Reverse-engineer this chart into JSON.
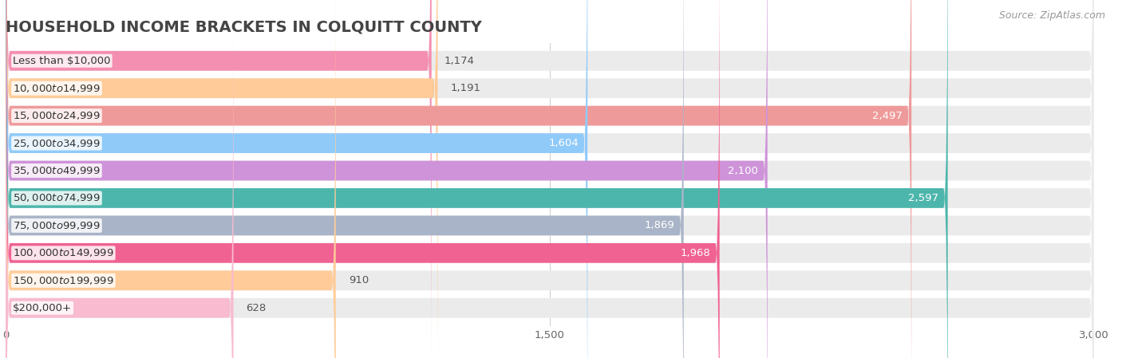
{
  "title": "HOUSEHOLD INCOME BRACKETS IN COLQUITT COUNTY",
  "source": "Source: ZipAtlas.com",
  "categories": [
    "Less than $10,000",
    "$10,000 to $14,999",
    "$15,000 to $24,999",
    "$25,000 to $34,999",
    "$35,000 to $49,999",
    "$50,000 to $74,999",
    "$75,000 to $99,999",
    "$100,000 to $149,999",
    "$150,000 to $199,999",
    "$200,000+"
  ],
  "values": [
    1174,
    1191,
    2497,
    1604,
    2100,
    2597,
    1869,
    1968,
    910,
    628
  ],
  "bar_colors": [
    "#f48fb1",
    "#ffcc99",
    "#ef9a9a",
    "#90caf9",
    "#ce93d8",
    "#4db6ac",
    "#aab4c8",
    "#f06292",
    "#ffcc99",
    "#f8bbd0"
  ],
  "bar_bg_color": "#ebebeb",
  "xlim": [
    0,
    3000
  ],
  "xticks": [
    0,
    1500,
    3000
  ],
  "xtick_labels": [
    "0",
    "1,500",
    "3,000"
  ],
  "title_color": "#444444",
  "label_color": "#444444",
  "value_color_inside": "#ffffff",
  "value_color_outside": "#555555",
  "background_color": "#ffffff",
  "bar_height": 0.72,
  "title_fontsize": 14,
  "label_fontsize": 9.5,
  "value_fontsize": 9.5,
  "source_fontsize": 9,
  "threshold_inside": 1400
}
